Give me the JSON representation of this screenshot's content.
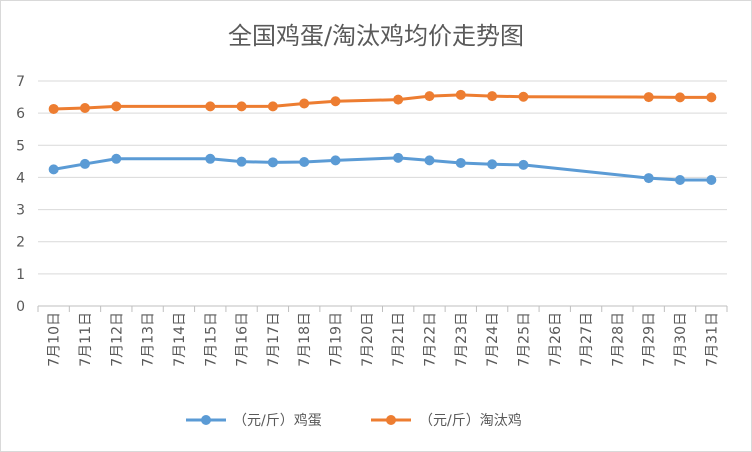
{
  "chart_data": {
    "type": "line",
    "title": "全国鸡蛋/淘汰鸡均价走势图",
    "xlabel": "",
    "ylabel": "",
    "categories": [
      "7月10日",
      "7月11日",
      "7月12日",
      "7月13日",
      "7月14日",
      "7月15日",
      "7月16日",
      "7月17日",
      "7月18日",
      "7月19日",
      "7月20日",
      "7月21日",
      "7月22日",
      "7月23日",
      "7月24日",
      "7月25日",
      "7月26日",
      "7月27日",
      "7月28日",
      "7月29日",
      "7月30日",
      "7月31日"
    ],
    "ylim": [
      0,
      7
    ],
    "yticks": [
      "0",
      "1",
      "2",
      "3",
      "4",
      "5",
      "6",
      "7"
    ],
    "grid": true,
    "legend_position": "bottom",
    "series": [
      {
        "name": "（元/斤）鸡蛋",
        "color": "#5b9bd5",
        "values": [
          4.25,
          4.42,
          4.58,
          null,
          null,
          4.58,
          4.49,
          4.47,
          4.48,
          4.53,
          null,
          4.61,
          4.53,
          4.45,
          4.41,
          4.39,
          null,
          null,
          null,
          3.98,
          3.92,
          3.92
        ]
      },
      {
        "name": "（元/斤）淘汰鸡",
        "color": "#ed7d31",
        "values": [
          6.13,
          6.16,
          6.21,
          null,
          null,
          6.21,
          6.21,
          6.21,
          6.3,
          6.37,
          null,
          6.42,
          6.53,
          6.57,
          6.53,
          6.51,
          null,
          null,
          null,
          6.5,
          6.49,
          6.49
        ]
      }
    ]
  }
}
